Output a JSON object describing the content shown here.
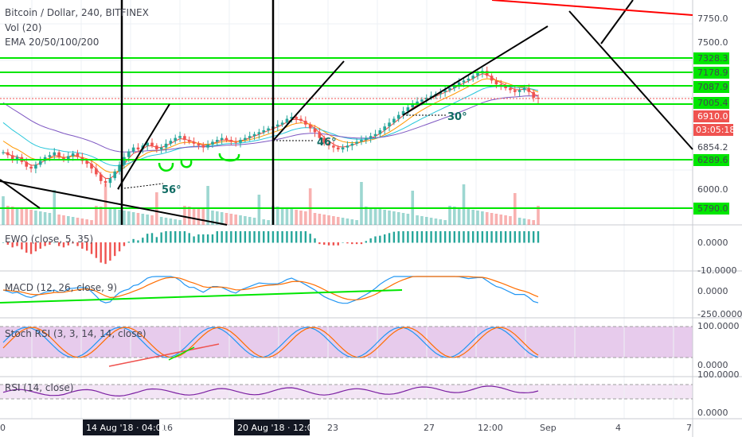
{
  "header": {
    "title": "Bitcoin / Dollar, 240, BITFINEX",
    "vol_label": "Vol (20)",
    "ema_label": "EMA 20/50/100/200"
  },
  "indicators": {
    "ewo": {
      "label": "EWO (close, 5, 35)",
      "ticks": [
        "0.0000",
        "-10.0000"
      ]
    },
    "macd": {
      "label": "MACD (12, 26, close, 9)",
      "ticks": [
        "0.0000",
        "-250.0000"
      ]
    },
    "stoch": {
      "label": "Stoch RSI (3, 3, 14, 14, close)",
      "ticks": [
        "100.0000",
        "0.0000"
      ]
    },
    "rsi": {
      "label": "RSI (14, close)",
      "ticks": [
        "100.0000",
        "0.0000"
      ]
    }
  },
  "annotations": {
    "angle_56": "56°",
    "angle_46": "46°",
    "angle_30": "30°"
  },
  "price_axis": {
    "ticks": [
      "7750.0",
      "7500.0",
      "6000.0"
    ],
    "level_labels": [
      "7328.3",
      "7178.9",
      "7087.9",
      "7005.4",
      "6854.2",
      "6289.6",
      "5790.0"
    ],
    "current_price": "6910.0",
    "countdown": "03:05:18"
  },
  "x_axis": {
    "ticks": [
      "0",
      "16",
      "23",
      "27",
      "12:00",
      "Sep",
      "4",
      "7"
    ],
    "highlight_1": "14 Aug '18 · 04:00",
    "highlight_2": "20 Aug '18 · 12:00"
  },
  "colors": {
    "up": "#26a69a",
    "down": "#ef5350",
    "levels": "#00e600",
    "trend_red": "#ff0000",
    "stoch_fill": "#e1bee7",
    "rsi_fill": "#f3e5f5"
  },
  "chart_data": {
    "type": "candlestick",
    "symbol": "Bitcoin / Dollar",
    "interval": "240",
    "exchange": "BITFINEX",
    "horizontal_levels": [
      7328.3,
      7178.9,
      7087.9,
      7005.4,
      6289.6,
      5790.0
    ],
    "current_price": 6910.0,
    "close_series": [
      6350,
      6320,
      6280,
      6300,
      6250,
      6200,
      6180,
      6220,
      6260,
      6300,
      6320,
      6350,
      6300,
      6280,
      6310,
      6340,
      6300,
      6260,
      6230,
      6180,
      6120,
      6050,
      6030,
      6080,
      6150,
      6220,
      6300,
      6360,
      6400,
      6380,
      6420,
      6450,
      6420,
      6380,
      6400,
      6440,
      6470,
      6500,
      6520,
      6480,
      6460,
      6440,
      6420,
      6400,
      6430,
      6460,
      6480,
      6500,
      6480,
      6460,
      6450,
      6480,
      6500,
      6520,
      6540,
      6560,
      6580,
      6600,
      6620,
      6640,
      6660,
      6700,
      6720,
      6700,
      6680,
      6640,
      6600,
      6560,
      6500,
      6450,
      6420,
      6400,
      6380,
      6400,
      6420,
      6440,
      6460,
      6480,
      6500,
      6520,
      6540,
      6580,
      6620,
      6660,
      6700,
      6740,
      6780,
      6820,
      6860,
      6880,
      6900,
      6920,
      6940,
      6960,
      6980,
      7000,
      7020,
      7050,
      7080,
      7100,
      7120,
      7150,
      7180,
      7200,
      7150,
      7100,
      7060,
      7050,
      7020,
      7000,
      6980,
      7000,
      7020,
      6980,
      6920,
      6910
    ]
  }
}
